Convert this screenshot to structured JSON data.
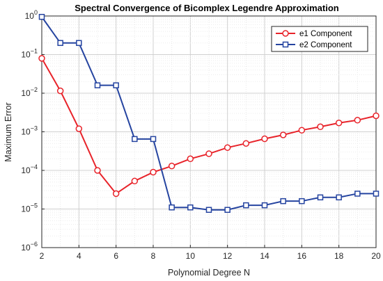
{
  "chart_data": {
    "type": "line",
    "title": "Spectral Convergence of Bicomplex Legendre Approximation",
    "xlabel": "Polynomial Degree N",
    "ylabel": "Maximum Error",
    "xlim": [
      2,
      20
    ],
    "ylim": [
      1e-06,
      1
    ],
    "yscale": "log",
    "grid": true,
    "legend_position": "top-right",
    "x": [
      2,
      3,
      4,
      5,
      6,
      7,
      8,
      9,
      10,
      11,
      12,
      13,
      14,
      15,
      16,
      17,
      18,
      19,
      20
    ],
    "x_ticks": [
      {
        "value": 2,
        "label": "2"
      },
      {
        "value": 4,
        "label": "4"
      },
      {
        "value": 6,
        "label": "6"
      },
      {
        "value": 8,
        "label": "8"
      },
      {
        "value": 10,
        "label": "10"
      },
      {
        "value": 12,
        "label": "12"
      },
      {
        "value": 14,
        "label": "14"
      },
      {
        "value": 16,
        "label": "16"
      },
      {
        "value": 18,
        "label": "18"
      },
      {
        "value": 20,
        "label": "20"
      }
    ],
    "y_ticks": [
      {
        "value": 1e-06,
        "base": "10",
        "exp": "−6"
      },
      {
        "value": 1e-05,
        "base": "10",
        "exp": "−5"
      },
      {
        "value": 0.0001,
        "base": "10",
        "exp": "−4"
      },
      {
        "value": 0.001,
        "base": "10",
        "exp": "−3"
      },
      {
        "value": 0.01,
        "base": "10",
        "exp": "−2"
      },
      {
        "value": 0.1,
        "base": "10",
        "exp": "−1"
      },
      {
        "value": 1,
        "base": "10",
        "exp": "0"
      }
    ],
    "series": [
      {
        "name": "e1 Component",
        "color": "#e8232a",
        "marker": "circle",
        "values": [
          0.08,
          0.0115,
          0.0012,
          0.0001,
          2.5e-05,
          5.3e-05,
          9e-05,
          0.00013,
          0.0002,
          0.00027,
          0.00039,
          0.0005,
          0.00066,
          0.00083,
          0.0011,
          0.00135,
          0.0017,
          0.002,
          0.0026
        ]
      },
      {
        "name": "e2 Component",
        "color": "#2544a0",
        "marker": "square",
        "values": [
          0.95,
          0.2,
          0.2,
          0.016,
          0.016,
          0.00065,
          0.00065,
          1.1e-05,
          1.1e-05,
          9.5e-06,
          9.5e-06,
          1.25e-05,
          1.25e-05,
          1.6e-05,
          1.6e-05,
          2e-05,
          2e-05,
          2.5e-05,
          2.5e-05
        ]
      }
    ]
  }
}
